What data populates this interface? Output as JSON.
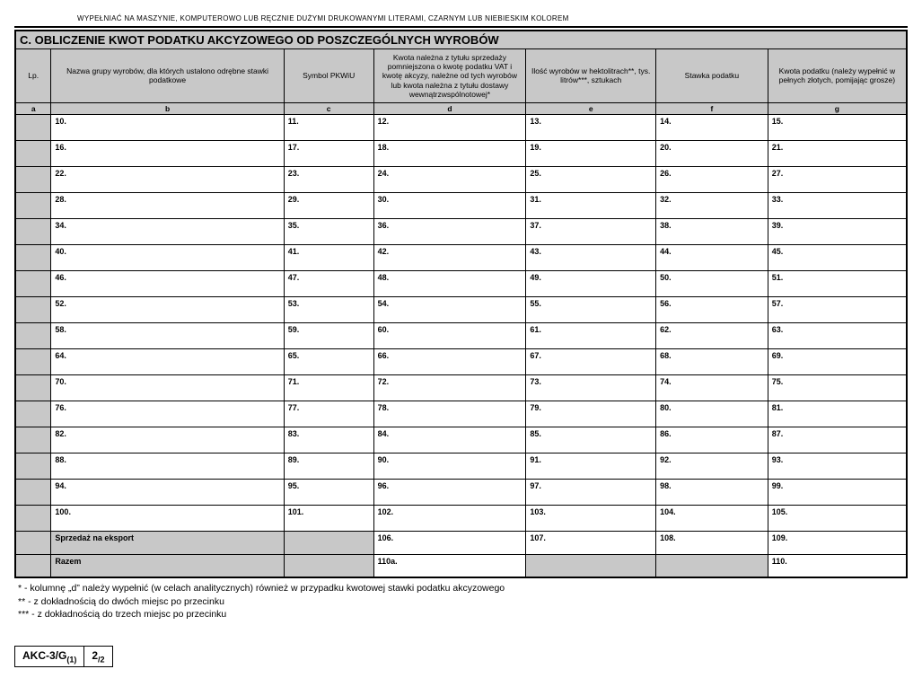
{
  "top_instruction": "WYPEŁNIAĆ NA MASZYNIE, KOMPUTEROWO LUB RĘCZNIE DUŻYMI DRUKOWANYMI LITERAMI, CZARNYM LUB NIEBIESKIM KOLOREM",
  "section_title": "C. OBLICZENIE KWOT PODATKU AKCYZOWEGO OD POSZCZEGÓLNYCH WYROBÓW",
  "headers": {
    "a": "Lp.",
    "b": "Nazwa grupy wyrobów, dla których ustalono odrębne stawki podatkowe",
    "c": "Symbol PKWiU",
    "d": "Kwota należna z tytułu sprzedaży pomniejszona o kwotę podatku VAT i kwotę akcyzy, należne od tych wyrobów lub kwota należna z tytułu dostawy wewnątrzwspólnotowej*",
    "e": "Ilość wyrobów w hektolitrach**, tys. litrów***, sztukach",
    "f": "Stawka podatku",
    "g": "Kwota podatku (należy wypełnić w pełnych złotych, pomijając grosze)"
  },
  "letter_row": [
    "a",
    "b",
    "c",
    "d",
    "e",
    "f",
    "g"
  ],
  "rows": [
    {
      "b": "10.",
      "c": "11.",
      "d": "12.",
      "e": "13.",
      "f": "14.",
      "g": "15."
    },
    {
      "b": "16.",
      "c": "17.",
      "d": "18.",
      "e": "19.",
      "f": "20.",
      "g": "21."
    },
    {
      "b": "22.",
      "c": "23.",
      "d": "24.",
      "e": "25.",
      "f": "26.",
      "g": "27."
    },
    {
      "b": "28.",
      "c": "29.",
      "d": "30.",
      "e": "31.",
      "f": "32.",
      "g": "33."
    },
    {
      "b": "34.",
      "c": "35.",
      "d": "36.",
      "e": "37.",
      "f": "38.",
      "g": "39."
    },
    {
      "b": "40.",
      "c": "41.",
      "d": "42.",
      "e": "43.",
      "f": "44.",
      "g": "45."
    },
    {
      "b": "46.",
      "c": "47.",
      "d": "48.",
      "e": "49.",
      "f": "50.",
      "g": "51."
    },
    {
      "b": "52.",
      "c": "53.",
      "d": "54.",
      "e": "55.",
      "f": "56.",
      "g": "57."
    },
    {
      "b": "58.",
      "c": "59.",
      "d": "60.",
      "e": "61.",
      "f": "62.",
      "g": "63."
    },
    {
      "b": "64.",
      "c": "65.",
      "d": "66.",
      "e": "67.",
      "f": "68.",
      "g": "69."
    },
    {
      "b": "70.",
      "c": "71.",
      "d": "72.",
      "e": "73.",
      "f": "74.",
      "g": "75."
    },
    {
      "b": "76.",
      "c": "77.",
      "d": "78.",
      "e": "79.",
      "f": "80.",
      "g": "81."
    },
    {
      "b": "82.",
      "c": "83.",
      "d": "84.",
      "e": "85.",
      "f": "86.",
      "g": "87."
    },
    {
      "b": "88.",
      "c": "89.",
      "d": "90.",
      "e": "91.",
      "f": "92.",
      "g": "93."
    },
    {
      "b": "94.",
      "c": "95.",
      "d": "96.",
      "e": "97.",
      "f": "98.",
      "g": "99."
    },
    {
      "b": "100.",
      "c": "101.",
      "d": "102.",
      "e": "103.",
      "f": "104.",
      "g": "105."
    }
  ],
  "export_row": {
    "label": "Sprzedaż na eksport",
    "d": "106.",
    "e": "107.",
    "f": "108.",
    "g": "109."
  },
  "total_row": {
    "label": "Razem",
    "d": "110a.",
    "g": "110."
  },
  "footnotes": [
    "* - kolumnę „d” należy wypełnić (w celach analitycznych) również w przypadku kwotowej stawki podatku akcyzowego",
    "** - z dokładnością do dwóch miejsc po przecinku",
    "*** - z dokładnością do trzech miejsc po przecinku"
  ],
  "form_id": {
    "code": "AKC-3/G",
    "sub1": "(1)",
    "page": "2",
    "of": "/2"
  },
  "colors": {
    "grey": "#c8c8c8",
    "border": "#000000",
    "bg": "#ffffff",
    "text": "#000000"
  }
}
